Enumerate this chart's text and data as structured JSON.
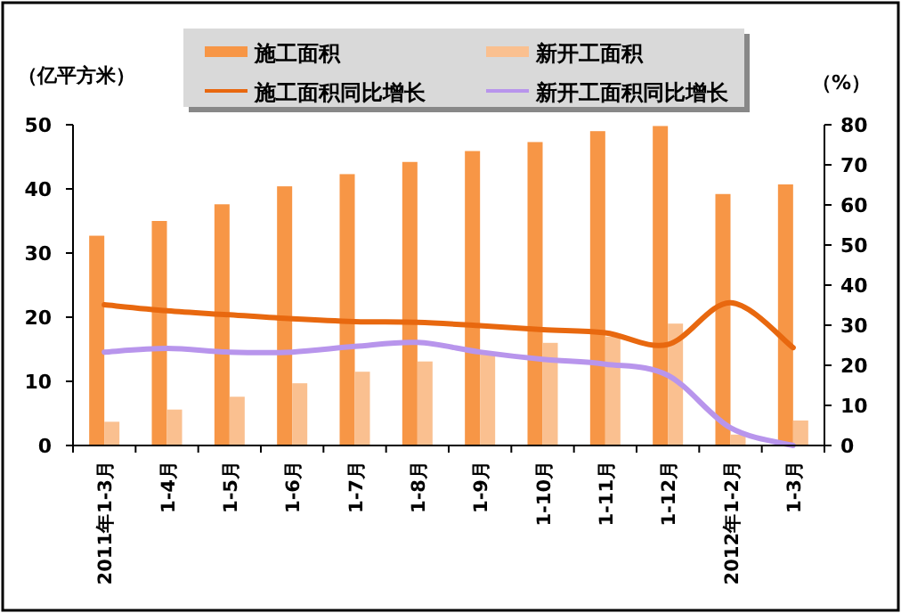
{
  "chart_data": {
    "type": "bar",
    "categories": [
      "2011年1-3月",
      "1-4月",
      "1-5月",
      "1-6月",
      "1-7月",
      "1-8月",
      "1-9月",
      "1-10月",
      "1-11月",
      "1-12月",
      "2012年1-2月",
      "1-3月"
    ],
    "series": [
      {
        "name": "施工面积",
        "color": "#f79646",
        "values": [
          32.7,
          35.0,
          37.6,
          40.4,
          42.3,
          44.2,
          45.9,
          47.3,
          49.0,
          49.8,
          39.2,
          40.7
        ]
      },
      {
        "name": "新开工面积",
        "color": "#fac090",
        "values": [
          3.7,
          5.6,
          7.6,
          9.7,
          11.5,
          13.1,
          14.3,
          16.0,
          17.0,
          19.0,
          1.7,
          3.9
        ]
      },
      {
        "name": "施工面积同比增长",
        "type": "line",
        "axis": "y2",
        "color": "#e8680f",
        "values": [
          35.1,
          33.6,
          32.6,
          31.6,
          30.9,
          30.7,
          29.9,
          28.9,
          28.1,
          25.2,
          35.6,
          24.4
        ]
      },
      {
        "name": "新开工面积同比增长",
        "type": "line",
        "axis": "y2",
        "color": "#b895ec",
        "values": [
          23.3,
          24.2,
          23.3,
          23.3,
          24.7,
          25.7,
          23.3,
          21.5,
          20.3,
          17.5,
          4.4,
          0
        ]
      }
    ],
    "ylabel": "（亿平方米）",
    "y2label": "（%）",
    "ylim": [
      0,
      50
    ],
    "yticks": [
      0,
      10,
      20,
      30,
      40,
      50
    ],
    "y2lim": [
      0,
      80
    ],
    "y2ticks": [
      0,
      10,
      20,
      30,
      40,
      50,
      60,
      70,
      80
    ],
    "legend": "top"
  }
}
